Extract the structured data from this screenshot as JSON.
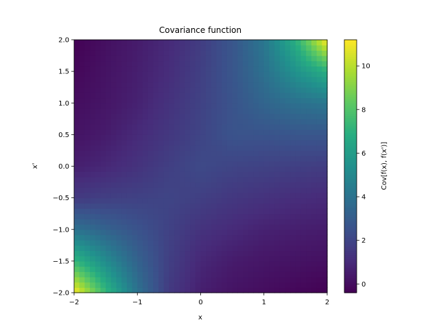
{
  "chart_data": {
    "type": "heatmap",
    "title": "Covariance function",
    "xlabel": "x",
    "ylabel": "x'",
    "colorbar_label": "Cov[f(x), f(x')]",
    "colormap": "viridis",
    "xlim": [
      -2.0,
      2.0
    ],
    "ylim": [
      -2.0,
      2.0
    ],
    "clim": [
      -0.4,
      11.2
    ],
    "grid": false,
    "x_ticks": [
      -2,
      -1,
      0,
      1,
      2
    ],
    "x_tick_labels": [
      "−2",
      "−1",
      "0",
      "1",
      "2"
    ],
    "y_ticks": [
      -2.0,
      -1.5,
      -1.0,
      -0.5,
      0.0,
      0.5,
      1.0,
      1.5,
      2.0
    ],
    "y_tick_labels": [
      "−2.0",
      "−1.5",
      "−1.0",
      "−0.5",
      "0.0",
      "0.5",
      "1.0",
      "1.5",
      "2.0"
    ],
    "colorbar_ticks": [
      0,
      2,
      4,
      6,
      8,
      10
    ],
    "colorbar_tick_labels": [
      "0",
      "2",
      "4",
      "6",
      "8",
      "10"
    ],
    "grid_x": [
      -2.0,
      -1.5,
      -1.0,
      -0.5,
      0.0,
      0.5,
      1.0,
      1.5,
      2.0
    ],
    "grid_y": [
      -2.0,
      -1.5,
      -1.0,
      -0.5,
      0.0,
      0.5,
      1.0,
      1.5,
      2.0
    ],
    "values": [
      [
        11.2,
        7.3,
        4.0,
        1.6,
        0.6,
        0.2,
        0.0,
        -0.2,
        -0.4
      ],
      [
        7.3,
        5.2,
        3.3,
        1.8,
        0.9,
        0.5,
        0.3,
        0.2,
        0.1
      ],
      [
        4.0,
        3.3,
        2.6,
        1.9,
        1.3,
        1.0,
        0.7,
        0.6,
        0.5
      ],
      [
        1.6,
        1.8,
        1.9,
        2.0,
        1.8,
        1.5,
        1.3,
        1.1,
        1.0
      ],
      [
        0.6,
        0.9,
        1.3,
        1.8,
        2.2,
        2.0,
        1.9,
        1.8,
        1.7
      ],
      [
        0.2,
        0.5,
        1.0,
        1.5,
        2.0,
        2.6,
        2.6,
        2.7,
        2.7
      ],
      [
        0.0,
        0.3,
        0.7,
        1.3,
        1.9,
        2.6,
        3.4,
        3.9,
        4.2
      ],
      [
        -0.2,
        0.2,
        0.6,
        1.1,
        1.8,
        2.7,
        3.9,
        5.5,
        6.9
      ],
      [
        -0.4,
        0.1,
        0.5,
        1.0,
        1.7,
        2.7,
        4.2,
        6.9,
        11.2
      ]
    ]
  }
}
